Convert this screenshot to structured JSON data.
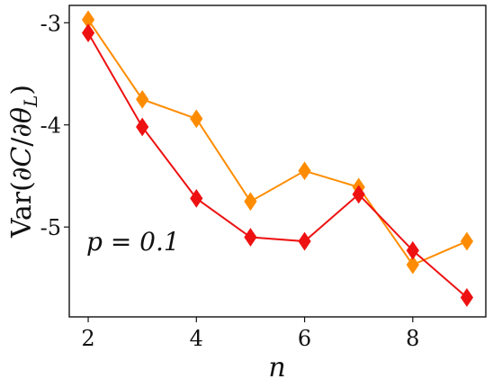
{
  "chart_data": {
    "type": "line",
    "xlabel": "n",
    "ylabel": "Var(∂C/∂θ_L)",
    "annotation": "p = 0.1",
    "xlim": [
      1.65,
      9.35
    ],
    "ylim": [
      -5.88,
      -2.83
    ],
    "x_ticks": [
      2,
      4,
      6,
      8
    ],
    "y_ticks": [
      -3,
      -4,
      -5
    ],
    "y_tick_labels": [
      "-3",
      "-4",
      "-5"
    ],
    "grid": false,
    "legend": "none",
    "x": [
      2,
      3,
      4,
      5,
      6,
      7,
      8,
      9
    ],
    "series": [
      {
        "color": "#ff8c00",
        "marker": "diamond",
        "values": [
          -2.97,
          -3.75,
          -3.94,
          -4.75,
          -4.45,
          -4.61,
          -5.37,
          -5.14
        ]
      },
      {
        "color": "#ee1111",
        "marker": "diamond",
        "values": [
          -3.1,
          -4.02,
          -4.72,
          -5.1,
          -5.14,
          -4.68,
          -5.23,
          -5.69
        ]
      }
    ]
  }
}
